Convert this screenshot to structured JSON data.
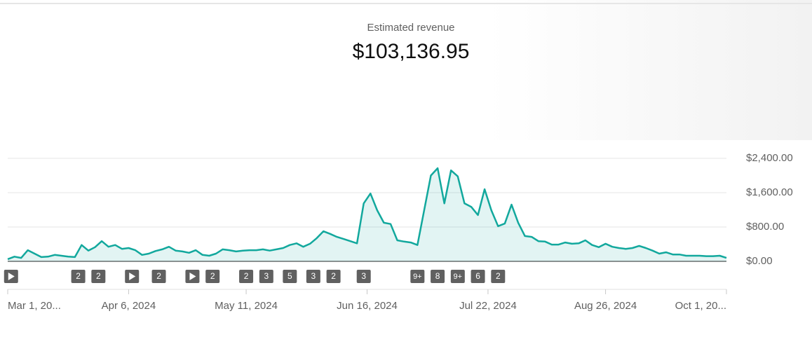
{
  "chart_data": {
    "type": "line",
    "title": "Estimated revenue",
    "total": "$103,136.95",
    "color": "#12a89d",
    "grid": true,
    "x": [
      "2024-03-01",
      "2024-03-03",
      "2024-03-05",
      "2024-03-07",
      "2024-03-09",
      "2024-03-11",
      "2024-03-13",
      "2024-03-15",
      "2024-03-17",
      "2024-03-19",
      "2024-03-21",
      "2024-03-23",
      "2024-03-25",
      "2024-03-27",
      "2024-03-29",
      "2024-03-31",
      "2024-04-02",
      "2024-04-04",
      "2024-04-06",
      "2024-04-08",
      "2024-04-10",
      "2024-04-12",
      "2024-04-14",
      "2024-04-16",
      "2024-04-18",
      "2024-04-20",
      "2024-04-22",
      "2024-04-24",
      "2024-04-26",
      "2024-04-28",
      "2024-04-30",
      "2024-05-02",
      "2024-05-04",
      "2024-05-06",
      "2024-05-08",
      "2024-05-10",
      "2024-05-12",
      "2024-05-14",
      "2024-05-16",
      "2024-05-18",
      "2024-05-20",
      "2024-05-22",
      "2024-05-24",
      "2024-05-26",
      "2024-05-28",
      "2024-05-30",
      "2024-06-01",
      "2024-06-03",
      "2024-06-05",
      "2024-06-07",
      "2024-06-09",
      "2024-06-11",
      "2024-06-13",
      "2024-06-15",
      "2024-06-17",
      "2024-06-19",
      "2024-06-21",
      "2024-06-23",
      "2024-06-25",
      "2024-06-27",
      "2024-06-29",
      "2024-07-01",
      "2024-07-03",
      "2024-07-05",
      "2024-07-07",
      "2024-07-09",
      "2024-07-11",
      "2024-07-13",
      "2024-07-15",
      "2024-07-17",
      "2024-07-19",
      "2024-07-21",
      "2024-07-23",
      "2024-07-25",
      "2024-07-27",
      "2024-07-29",
      "2024-07-31",
      "2024-08-02",
      "2024-08-04",
      "2024-08-06",
      "2024-08-08",
      "2024-08-10",
      "2024-08-12",
      "2024-08-14",
      "2024-08-16",
      "2024-08-18",
      "2024-08-20",
      "2024-08-22",
      "2024-08-24",
      "2024-08-26",
      "2024-08-28",
      "2024-08-30",
      "2024-09-01",
      "2024-09-03",
      "2024-09-05",
      "2024-09-07",
      "2024-09-09",
      "2024-09-11",
      "2024-09-13",
      "2024-09-15",
      "2024-09-17",
      "2024-09-19",
      "2024-09-21",
      "2024-09-23",
      "2024-09-25",
      "2024-09-27",
      "2024-09-29",
      "2024-10-01"
    ],
    "values": [
      50,
      110,
      80,
      260,
      180,
      100,
      110,
      150,
      130,
      110,
      100,
      380,
      250,
      330,
      470,
      340,
      380,
      290,
      310,
      260,
      150,
      180,
      240,
      280,
      340,
      250,
      230,
      200,
      260,
      150,
      130,
      180,
      280,
      260,
      230,
      250,
      260,
      260,
      280,
      250,
      280,
      310,
      380,
      420,
      340,
      410,
      540,
      700,
      640,
      570,
      520,
      470,
      420,
      1350,
      1580,
      1190,
      900,
      870,
      490,
      460,
      440,
      380,
      1190,
      2000,
      2170,
      1350,
      2120,
      1980,
      1350,
      1270,
      1080,
      1680,
      1190,
      820,
      880,
      1320,
      900,
      590,
      570,
      470,
      460,
      390,
      390,
      440,
      410,
      420,
      490,
      380,
      330,
      410,
      340,
      310,
      290,
      310,
      360,
      310,
      250,
      180,
      210,
      160,
      160,
      130,
      130,
      130,
      120,
      120,
      130,
      80
    ],
    "xlim": [
      "2024-03-01",
      "2024-10-01"
    ],
    "xticks": [
      {
        "value": "2024-03-01",
        "label": "Mar 1, 20..."
      },
      {
        "value": "2024-04-06",
        "label": "Apr 6, 2024"
      },
      {
        "value": "2024-05-11",
        "label": "May 11, 2024"
      },
      {
        "value": "2024-06-16",
        "label": "Jun 16, 2024"
      },
      {
        "value": "2024-07-22",
        "label": "Jul 22, 2024"
      },
      {
        "value": "2024-08-26",
        "label": "Aug 26, 2024"
      },
      {
        "value": "2024-10-01",
        "label": "Oct 1, 20..."
      }
    ],
    "ylim": [
      0,
      2400
    ],
    "yticks": [
      {
        "value": 0,
        "label": "$0.00"
      },
      {
        "value": 800,
        "label": "$800.00"
      },
      {
        "value": 1600,
        "label": "$1,600.00"
      },
      {
        "value": 2400,
        "label": "$2,400.00"
      }
    ],
    "markers": [
      {
        "x": "2024-03-02"
      },
      {
        "x": "2024-03-22",
        "label": "2"
      },
      {
        "x": "2024-03-28",
        "label": "2"
      },
      {
        "x": "2024-04-07"
      },
      {
        "x": "2024-04-15",
        "label": "2"
      },
      {
        "x": "2024-04-25"
      },
      {
        "x": "2024-05-01",
        "label": "2"
      },
      {
        "x": "2024-05-11",
        "label": "2"
      },
      {
        "x": "2024-05-17",
        "label": "3"
      },
      {
        "x": "2024-05-24",
        "label": "5"
      },
      {
        "x": "2024-05-31",
        "label": "3"
      },
      {
        "x": "2024-06-06",
        "label": "2"
      },
      {
        "x": "2024-06-15",
        "label": "3"
      },
      {
        "x": "2024-07-01",
        "label": "9+"
      },
      {
        "x": "2024-07-07",
        "label": "8"
      },
      {
        "x": "2024-07-13",
        "label": "9+"
      },
      {
        "x": "2024-07-19",
        "label": "6"
      },
      {
        "x": "2024-07-25",
        "label": "2"
      }
    ]
  }
}
